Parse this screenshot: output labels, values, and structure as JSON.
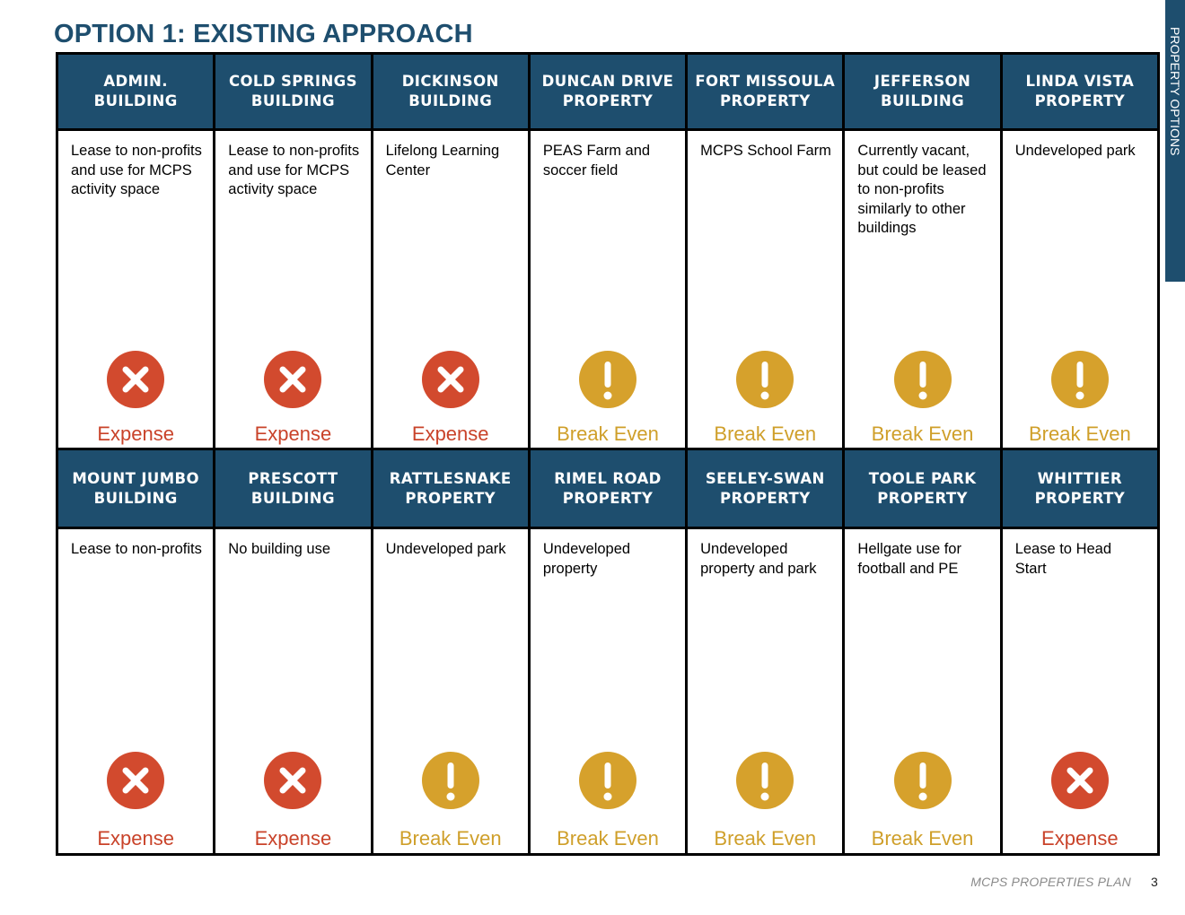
{
  "page_title": "OPTION 1: EXISTING APPROACH",
  "side_tab": "PROPERTY OPTIONS",
  "rows": [
    {
      "properties": [
        {
          "name_line1": "ADMIN.",
          "name_line2": "BUILDING",
          "description": "Lease to non-profits and use for MCPS activity space",
          "status": "Expense",
          "status_type": "expense",
          "status_icon": "x-circle-icon"
        },
        {
          "name_line1": "COLD SPRINGS",
          "name_line2": "BUILDING",
          "description": "Lease to non-profits and use for MCPS activity space",
          "status": "Expense",
          "status_type": "expense",
          "status_icon": "x-circle-icon"
        },
        {
          "name_line1": "DICKINSON",
          "name_line2": "BUILDING",
          "description": "Lifelong Learning Center",
          "status": "Expense",
          "status_type": "expense",
          "status_icon": "x-circle-icon"
        },
        {
          "name_line1": "DUNCAN DRIVE",
          "name_line2": "PROPERTY",
          "description": "PEAS Farm and soccer field",
          "status": "Break Even",
          "status_type": "break",
          "status_icon": "exclamation-circle-icon"
        },
        {
          "name_line1": "FORT MISSOULA",
          "name_line2": "PROPERTY",
          "description": "MCPS School Farm",
          "status": "Break Even",
          "status_type": "break",
          "status_icon": "exclamation-circle-icon"
        },
        {
          "name_line1": "JEFFERSON",
          "name_line2": "BUILDING",
          "description": "Currently vacant, but could be leased to non-profits similarly to other buildings",
          "status": "Break Even",
          "status_type": "break",
          "status_icon": "exclamation-circle-icon"
        },
        {
          "name_line1": "LINDA VISTA",
          "name_line2": "PROPERTY",
          "description": "Undeveloped park",
          "status": "Break Even",
          "status_type": "break",
          "status_icon": "exclamation-circle-icon"
        }
      ]
    },
    {
      "properties": [
        {
          "name_line1": "MOUNT JUMBO",
          "name_line2": "BUILDING",
          "description": "Lease to non-profits",
          "status": "Expense",
          "status_type": "expense",
          "status_icon": "x-circle-icon"
        },
        {
          "name_line1": "PRESCOTT",
          "name_line2": "BUILDING",
          "description": "No building use",
          "status": "Expense",
          "status_type": "expense",
          "status_icon": "x-circle-icon"
        },
        {
          "name_line1": "RATTLESNAKE",
          "name_line2": "PROPERTY",
          "description": "Undeveloped park",
          "status": "Break Even",
          "status_type": "break",
          "status_icon": "exclamation-circle-icon"
        },
        {
          "name_line1": "RIMEL ROAD",
          "name_line2": "PROPERTY",
          "description": "Undeveloped property",
          "status": "Break Even",
          "status_type": "break",
          "status_icon": "exclamation-circle-icon"
        },
        {
          "name_line1": "SEELEY-SWAN",
          "name_line2": "PROPERTY",
          "description": "Undeveloped property and park",
          "status": "Break Even",
          "status_type": "break",
          "status_icon": "exclamation-circle-icon"
        },
        {
          "name_line1": "TOOLE PARK",
          "name_line2": "PROPERTY",
          "description": "Hellgate use for football and PE",
          "status": "Break Even",
          "status_type": "break",
          "status_icon": "exclamation-circle-icon"
        },
        {
          "name_line1": "WHITTIER",
          "name_line2": "PROPERTY",
          "description": "Lease to Head Start",
          "status": "Expense",
          "status_type": "expense",
          "status_icon": "x-circle-icon"
        }
      ]
    }
  ],
  "colors": {
    "navy": "#1e4e6e",
    "expense": "#d24a2e",
    "break_even": "#d6a12c"
  },
  "footer": {
    "text": "MCPS PROPERTIES PLAN",
    "page_number": "3"
  }
}
